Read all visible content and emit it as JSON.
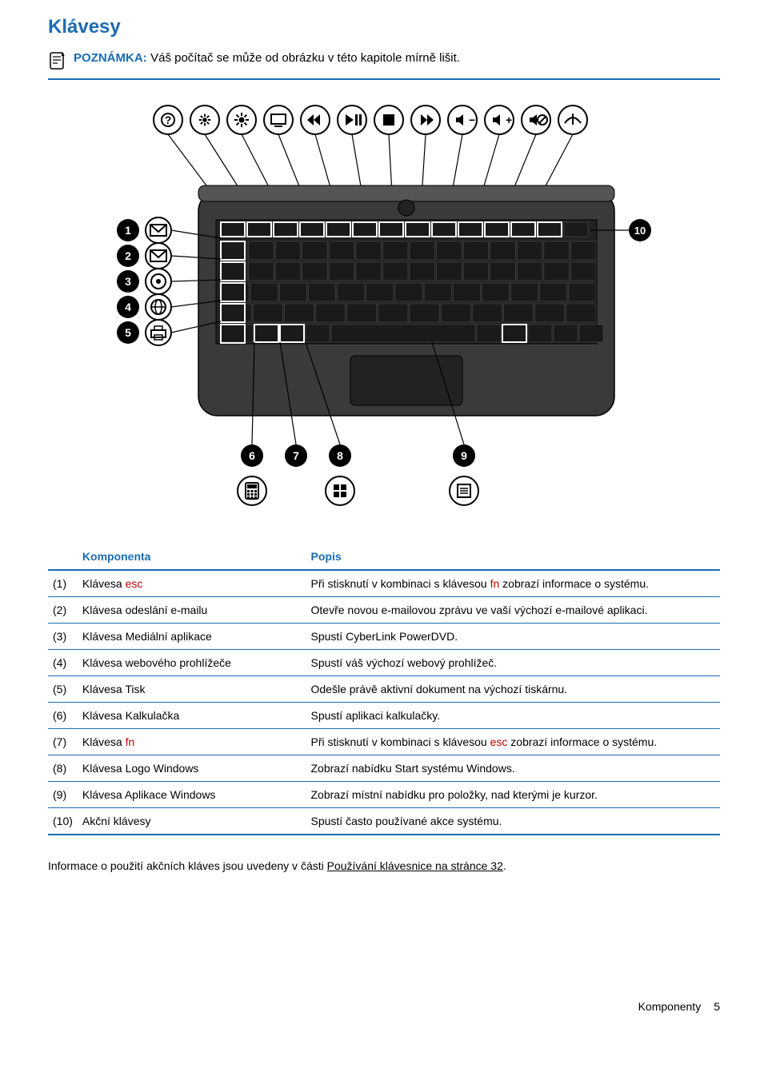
{
  "title": "Klávesy",
  "note": {
    "label": "POZNÁMKA:",
    "text": "Váš počítač se může od obrázku v této kapitole mírně lišit."
  },
  "table": {
    "header_component": "Komponenta",
    "header_description": "Popis",
    "rows": [
      {
        "num": "(1)",
        "name_pre": "Klávesa ",
        "name_red": "esc",
        "name_post": "",
        "desc_pre": "Při stisknutí v kombinaci s klávesou ",
        "desc_red": "fn",
        "desc_post": " zobrazí informace o systému."
      },
      {
        "num": "(2)",
        "name_pre": "Klávesa odeslání e-mailu",
        "name_red": "",
        "name_post": "",
        "desc_pre": "Otevře novou e-mailovou zprávu ve vaší výchozí e-mailové aplikaci.",
        "desc_red": "",
        "desc_post": ""
      },
      {
        "num": "(3)",
        "name_pre": "Klávesa Mediální aplikace",
        "name_red": "",
        "name_post": "",
        "desc_pre": "Spustí CyberLink PowerDVD.",
        "desc_red": "",
        "desc_post": ""
      },
      {
        "num": "(4)",
        "name_pre": "Klávesa webového prohlížeče",
        "name_red": "",
        "name_post": "",
        "desc_pre": "Spustí váš výchozí webový prohlížeč.",
        "desc_red": "",
        "desc_post": ""
      },
      {
        "num": "(5)",
        "name_pre": "Klávesa Tisk",
        "name_red": "",
        "name_post": "",
        "desc_pre": "Odešle právě aktivní dokument na výchozí tiskárnu.",
        "desc_red": "",
        "desc_post": ""
      },
      {
        "num": "(6)",
        "name_pre": "Klávesa Kalkulačka",
        "name_red": "",
        "name_post": "",
        "desc_pre": "Spustí aplikaci kalkulačky.",
        "desc_red": "",
        "desc_post": ""
      },
      {
        "num": "(7)",
        "name_pre": "Klávesa ",
        "name_red": "fn",
        "name_post": "",
        "desc_pre": "Při stisknutí v kombinaci s klávesou ",
        "desc_red": "esc",
        "desc_post": " zobrazí informace o systému."
      },
      {
        "num": "(8)",
        "name_pre": "Klávesa Logo Windows",
        "name_red": "",
        "name_post": "",
        "desc_pre": "Zobrazí nabídku Start systému Windows.",
        "desc_red": "",
        "desc_post": ""
      },
      {
        "num": "(9)",
        "name_pre": "Klávesa Aplikace Windows",
        "name_red": "",
        "name_post": "",
        "desc_pre": "Zobrazí místní nabídku pro položky, nad kterými je kurzor.",
        "desc_red": "",
        "desc_post": ""
      },
      {
        "num": "(10)",
        "name_pre": "Akční klávesy",
        "name_red": "",
        "name_post": "",
        "desc_pre": "Spustí často používané akce systému.",
        "desc_red": "",
        "desc_post": ""
      }
    ]
  },
  "footer_note": {
    "pre": "Informace o použití akčních kláves jsou uvedeny v části ",
    "link": "Používání klávesnice na stránce 32",
    "post": "."
  },
  "page_footer": {
    "section": "Komponenty",
    "page": "5"
  },
  "diagram": {
    "top_icons": [
      "help",
      "bright-down",
      "bright-up",
      "display",
      "prev",
      "play",
      "stop",
      "next",
      "vol-down",
      "vol-up",
      "mute",
      "wifi"
    ],
    "left_badges": [
      {
        "n": "1",
        "icon": "mail"
      },
      {
        "n": "2",
        "icon": "mail"
      },
      {
        "n": "3",
        "icon": "media"
      },
      {
        "n": "4",
        "icon": "globe"
      },
      {
        "n": "5",
        "icon": "print"
      }
    ],
    "right_badge": {
      "n": "10"
    },
    "bottom_badges": [
      {
        "n": "6",
        "icon": "calc"
      },
      {
        "n": "7",
        "icon": "fn"
      },
      {
        "n": "8",
        "icon": "win"
      },
      {
        "n": "9",
        "icon": "menu"
      }
    ],
    "colors": {
      "accent": "#1a6bb3",
      "stroke": "#000000",
      "laptop_fill": "#3a3a3a",
      "key_fill": "#1a1a1a",
      "white": "#ffffff"
    }
  }
}
